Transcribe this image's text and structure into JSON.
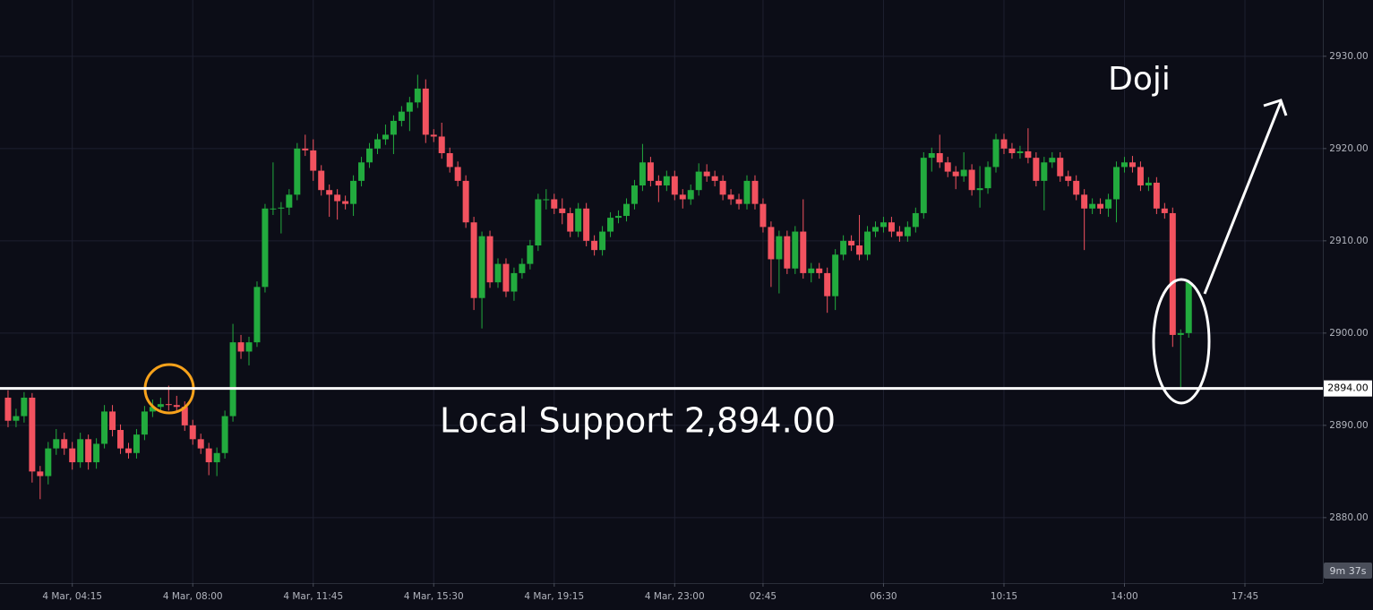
{
  "chart_data": {
    "type": "candlestick",
    "up_color": "#22ab3e",
    "down_color": "#f2525f",
    "grid": true,
    "xlim": [
      -1,
      163.7
    ],
    "ylim": [
      2872.9,
      2936.1
    ],
    "yticks": [
      {
        "value": 2880,
        "label": "2880.00"
      },
      {
        "value": 2890,
        "label": "2890.00"
      },
      {
        "value": 2900,
        "label": "2900.00"
      },
      {
        "value": 2910,
        "label": "2910.00"
      },
      {
        "value": 2920,
        "label": "2920.00"
      },
      {
        "value": 2930,
        "label": "2930.00"
      }
    ],
    "xticks": [
      {
        "value": 8,
        "label": "4 Mar, 04:15"
      },
      {
        "value": 23,
        "label": "4 Mar, 08:00"
      },
      {
        "value": 38,
        "label": "4 Mar, 11:45"
      },
      {
        "value": 53,
        "label": "4 Mar, 15:30"
      },
      {
        "value": 68,
        "label": "4 Mar, 19:15"
      },
      {
        "value": 83,
        "label": "4 Mar, 23:00"
      },
      {
        "value": 94,
        "label": "02:45"
      },
      {
        "value": 109,
        "label": "06:30"
      },
      {
        "value": 124,
        "label": "10:15"
      },
      {
        "value": 139,
        "label": "14:00"
      },
      {
        "value": 154,
        "label": "17:45"
      }
    ],
    "support": {
      "value": 2894,
      "label": "2894.00"
    },
    "annotations": [
      "Doji",
      "Local Support 2,894.00"
    ],
    "countdown": "9m 37s",
    "ohlc": [
      [
        2893,
        2893.8,
        2889.8,
        2890.5
      ],
      [
        2890.5,
        2891.8,
        2889.8,
        2891
      ],
      [
        2891,
        2893.6,
        2890.3,
        2893
      ],
      [
        2893,
        2893.5,
        2883.8,
        2885
      ],
      [
        2885,
        2885.6,
        2882,
        2884.5
      ],
      [
        2884.5,
        2888.2,
        2883.6,
        2887.5
      ],
      [
        2887.5,
        2889.6,
        2886.8,
        2888.5
      ],
      [
        2888.5,
        2889.2,
        2886.8,
        2887.5
      ],
      [
        2887.5,
        2888.2,
        2885.2,
        2886
      ],
      [
        2886,
        2889.2,
        2885.4,
        2888.5
      ],
      [
        2888.5,
        2889,
        2885.2,
        2886
      ],
      [
        2886,
        2888.6,
        2885.3,
        2888
      ],
      [
        2888,
        2892.2,
        2887.5,
        2891.5
      ],
      [
        2891.5,
        2892.2,
        2888.8,
        2889.5
      ],
      [
        2889.5,
        2890.1,
        2886.9,
        2887.5
      ],
      [
        2887.5,
        2888.1,
        2886.4,
        2887
      ],
      [
        2887,
        2889.6,
        2886.4,
        2889
      ],
      [
        2889,
        2892.1,
        2888.4,
        2891.5
      ],
      [
        2891.5,
        2892.8,
        2890.9,
        2892
      ],
      [
        2892,
        2893,
        2891.6,
        2892.3
      ],
      [
        2892.3,
        2894.3,
        2891.6,
        2892.2
      ],
      [
        2892.2,
        2893.2,
        2891.4,
        2892
      ],
      [
        2892,
        2892.6,
        2889.4,
        2890
      ],
      [
        2890,
        2890.6,
        2887.9,
        2888.5
      ],
      [
        2888.5,
        2889.1,
        2886.9,
        2887.5
      ],
      [
        2887.5,
        2888.1,
        2884.6,
        2886
      ],
      [
        2886,
        2887.6,
        2884.5,
        2887
      ],
      [
        2887,
        2891.6,
        2886.4,
        2891
      ],
      [
        2891,
        2901,
        2890.4,
        2899
      ],
      [
        2899,
        2899.8,
        2897.2,
        2898
      ],
      [
        2898,
        2899.6,
        2896.5,
        2899
      ],
      [
        2899,
        2905.6,
        2898.5,
        2905
      ],
      [
        2905,
        2914,
        2904.4,
        2913.5
      ],
      [
        2913.5,
        2918.5,
        2912.8,
        2913.5
      ],
      [
        2913.5,
        2914.2,
        2910.8,
        2913.6
      ],
      [
        2913.6,
        2915.6,
        2912.8,
        2915
      ],
      [
        2915,
        2920.6,
        2914.4,
        2920
      ],
      [
        2920,
        2921.5,
        2919.2,
        2919.8
      ],
      [
        2919.8,
        2921,
        2916.5,
        2917.6
      ],
      [
        2917.6,
        2918.2,
        2914.9,
        2915.5
      ],
      [
        2915.5,
        2916.1,
        2912.6,
        2915
      ],
      [
        2915,
        2915.6,
        2912.3,
        2914.3
      ],
      [
        2914.3,
        2914.9,
        2913.4,
        2914
      ],
      [
        2914,
        2917.1,
        2912.7,
        2916.5
      ],
      [
        2916.5,
        2919.1,
        2915.9,
        2918.5
      ],
      [
        2918.5,
        2920.6,
        2917.9,
        2920
      ],
      [
        2920,
        2921.6,
        2919.4,
        2921
      ],
      [
        2921,
        2922.6,
        2920.4,
        2921.5
      ],
      [
        2921.5,
        2923.6,
        2919.4,
        2923
      ],
      [
        2923,
        2924.6,
        2922.4,
        2924
      ],
      [
        2924,
        2925.6,
        2921.9,
        2925
      ],
      [
        2925,
        2928,
        2924.4,
        2926.5
      ],
      [
        2926.5,
        2927.5,
        2920.6,
        2921.5
      ],
      [
        2921.5,
        2922.1,
        2920.7,
        2921.3
      ],
      [
        2921.3,
        2922.8,
        2918.9,
        2919.5
      ],
      [
        2919.5,
        2920.1,
        2917.4,
        2918
      ],
      [
        2918,
        2918.6,
        2915.9,
        2916.5
      ],
      [
        2916.5,
        2917.1,
        2911.4,
        2912
      ],
      [
        2912,
        2912.6,
        2902.5,
        2903.8
      ],
      [
        2903.8,
        2911,
        2900.5,
        2910.5
      ],
      [
        2910.5,
        2911.1,
        2904.9,
        2905.5
      ],
      [
        2905.5,
        2908.1,
        2904.9,
        2907.5
      ],
      [
        2907.5,
        2908.1,
        2903.9,
        2904.5
      ],
      [
        2904.5,
        2907.1,
        2903.5,
        2906.5
      ],
      [
        2906.5,
        2908.1,
        2905.9,
        2907.5
      ],
      [
        2907.5,
        2910.1,
        2906.9,
        2909.5
      ],
      [
        2909.5,
        2915.1,
        2908.9,
        2914.5
      ],
      [
        2914.5,
        2915.6,
        2913.4,
        2914.5
      ],
      [
        2914.5,
        2915.1,
        2912.9,
        2913.5
      ],
      [
        2913.5,
        2914.6,
        2911.8,
        2913
      ],
      [
        2913,
        2913.6,
        2910.4,
        2911
      ],
      [
        2911,
        2914.1,
        2910.4,
        2913.5
      ],
      [
        2913.5,
        2914.1,
        2909.4,
        2910
      ],
      [
        2910,
        2910.6,
        2908.4,
        2909
      ],
      [
        2909,
        2911.6,
        2908.4,
        2911
      ],
      [
        2911,
        2913.1,
        2910.4,
        2912.5
      ],
      [
        2912.5,
        2913.3,
        2911.9,
        2912.7
      ],
      [
        2912.7,
        2914.6,
        2912.1,
        2914
      ],
      [
        2914,
        2916.6,
        2913.4,
        2916
      ],
      [
        2916,
        2920.5,
        2915.4,
        2918.5
      ],
      [
        2918.5,
        2919.1,
        2915.9,
        2916.5
      ],
      [
        2916.5,
        2917.1,
        2914.2,
        2916
      ],
      [
        2916,
        2917.6,
        2915.4,
        2917
      ],
      [
        2917,
        2917.6,
        2914.4,
        2915
      ],
      [
        2915,
        2915.6,
        2913.5,
        2914.5
      ],
      [
        2914.5,
        2916.1,
        2913.9,
        2915.5
      ],
      [
        2915.5,
        2918.4,
        2914.9,
        2917.5
      ],
      [
        2917.5,
        2918.3,
        2916.4,
        2917
      ],
      [
        2917,
        2917.6,
        2915.9,
        2916.5
      ],
      [
        2916.5,
        2917.1,
        2914.4,
        2915
      ],
      [
        2915,
        2915.6,
        2913.9,
        2914.5
      ],
      [
        2914.5,
        2915.1,
        2913.4,
        2914
      ],
      [
        2914,
        2917.1,
        2913.4,
        2916.5
      ],
      [
        2916.5,
        2917.1,
        2913.4,
        2914
      ],
      [
        2914,
        2914.6,
        2910.9,
        2911.5
      ],
      [
        2911.5,
        2912.1,
        2905,
        2908
      ],
      [
        2908,
        2911.1,
        2904.3,
        2910.5
      ],
      [
        2910.5,
        2911.1,
        2906.4,
        2907
      ],
      [
        2907,
        2911.6,
        2906.4,
        2911
      ],
      [
        2911,
        2914.5,
        2905.9,
        2906.5
      ],
      [
        2906.5,
        2907.6,
        2905.5,
        2907
      ],
      [
        2907,
        2907.6,
        2905.9,
        2906.5
      ],
      [
        2906.5,
        2907.1,
        2902.2,
        2904
      ],
      [
        2904,
        2909.1,
        2902.5,
        2908.5
      ],
      [
        2908.5,
        2910.6,
        2907.9,
        2910
      ],
      [
        2910,
        2910.6,
        2908.9,
        2909.5
      ],
      [
        2909.5,
        2912.8,
        2907.9,
        2908.5
      ],
      [
        2908.5,
        2911.6,
        2907.9,
        2911
      ],
      [
        2911,
        2912.1,
        2910.4,
        2911.5
      ],
      [
        2911.5,
        2912.6,
        2910.9,
        2912
      ],
      [
        2912,
        2912.6,
        2910.4,
        2911
      ],
      [
        2911,
        2911.6,
        2909.9,
        2910.5
      ],
      [
        2910.5,
        2912.1,
        2909.9,
        2911.5
      ],
      [
        2911.5,
        2913.6,
        2910.9,
        2913
      ],
      [
        2913,
        2919.6,
        2912.4,
        2919
      ],
      [
        2919,
        2920.1,
        2917.5,
        2919.5
      ],
      [
        2919.5,
        2921.5,
        2917.9,
        2918.5
      ],
      [
        2918.5,
        2919.1,
        2916.9,
        2917.5
      ],
      [
        2917.5,
        2918.1,
        2915.6,
        2917
      ],
      [
        2917,
        2919.6,
        2916.4,
        2917.7
      ],
      [
        2917.7,
        2918.3,
        2914.9,
        2915.5
      ],
      [
        2915.5,
        2918.1,
        2913.6,
        2915.7
      ],
      [
        2915.7,
        2918.6,
        2915.1,
        2918
      ],
      [
        2918,
        2921.6,
        2917.4,
        2921
      ],
      [
        2921,
        2921.6,
        2919.4,
        2920
      ],
      [
        2920,
        2920.6,
        2918.9,
        2919.5
      ],
      [
        2919.5,
        2920.3,
        2918.9,
        2919.7
      ],
      [
        2919.7,
        2922.2,
        2918.4,
        2919
      ],
      [
        2919,
        2919.6,
        2915.9,
        2916.5
      ],
      [
        2916.5,
        2919.1,
        2913.3,
        2918.5
      ],
      [
        2918.5,
        2919.6,
        2917.9,
        2919
      ],
      [
        2919,
        2919.6,
        2916.4,
        2917
      ],
      [
        2917,
        2917.6,
        2915.9,
        2916.5
      ],
      [
        2916.5,
        2917.1,
        2914.4,
        2915
      ],
      [
        2915,
        2915.6,
        2909,
        2913.5
      ],
      [
        2913.5,
        2914.6,
        2912.9,
        2914
      ],
      [
        2914,
        2914.6,
        2912.9,
        2913.5
      ],
      [
        2913.5,
        2915.1,
        2912.6,
        2914.5
      ],
      [
        2914.5,
        2918.6,
        2912,
        2918
      ],
      [
        2918,
        2919.1,
        2917.4,
        2918.5
      ],
      [
        2918.5,
        2919.2,
        2917.4,
        2918
      ],
      [
        2918,
        2918.6,
        2915.4,
        2916
      ],
      [
        2916,
        2916.9,
        2915.4,
        2916.3
      ],
      [
        2916.3,
        2916.9,
        2912.9,
        2913.5
      ],
      [
        2913.5,
        2914.1,
        2912.4,
        2913
      ],
      [
        2913,
        2913.6,
        2898.5,
        2899.8
      ],
      [
        2899.8,
        2900.4,
        2894,
        2900
      ],
      [
        2900,
        2905.8,
        2899.5,
        2905.5
      ]
    ]
  }
}
